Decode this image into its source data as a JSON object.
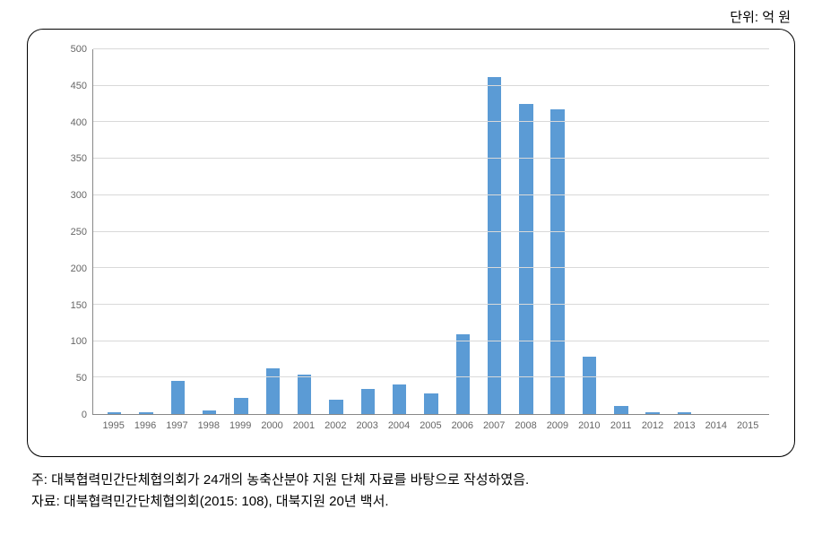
{
  "unit_label": "단위: 억 원",
  "chart": {
    "type": "bar",
    "categories": [
      "1995",
      "1996",
      "1997",
      "1998",
      "1999",
      "2000",
      "2001",
      "2002",
      "2003",
      "2004",
      "2005",
      "2006",
      "2007",
      "2008",
      "2009",
      "2010",
      "2011",
      "2012",
      "2013",
      "2014",
      "2015"
    ],
    "values": [
      2,
      2,
      45,
      5,
      22,
      63,
      54,
      20,
      34,
      40,
      28,
      109,
      462,
      425,
      418,
      79,
      11,
      3,
      2,
      0,
      0
    ],
    "bar_color": "#5b9bd5",
    "ylim": [
      0,
      500
    ],
    "ytick_step": 50,
    "yticks": [
      0,
      50,
      100,
      150,
      200,
      250,
      300,
      350,
      400,
      450,
      500
    ],
    "background_color": "#ffffff",
    "grid_color": "#d9d9d9",
    "axis_color": "#888888",
    "tick_font_color": "#666666",
    "tick_fontsize": 11,
    "border_radius": 18,
    "bar_width_ratio": 0.44
  },
  "notes": {
    "line1": "주: 대북협력민간단체협의회가 24개의 농축산분야 지원 단체 자료를 바탕으로 작성하였음.",
    "line2": "자료: 대북협력민간단체협의회(2015: 108), 대북지원 20년 백서."
  }
}
